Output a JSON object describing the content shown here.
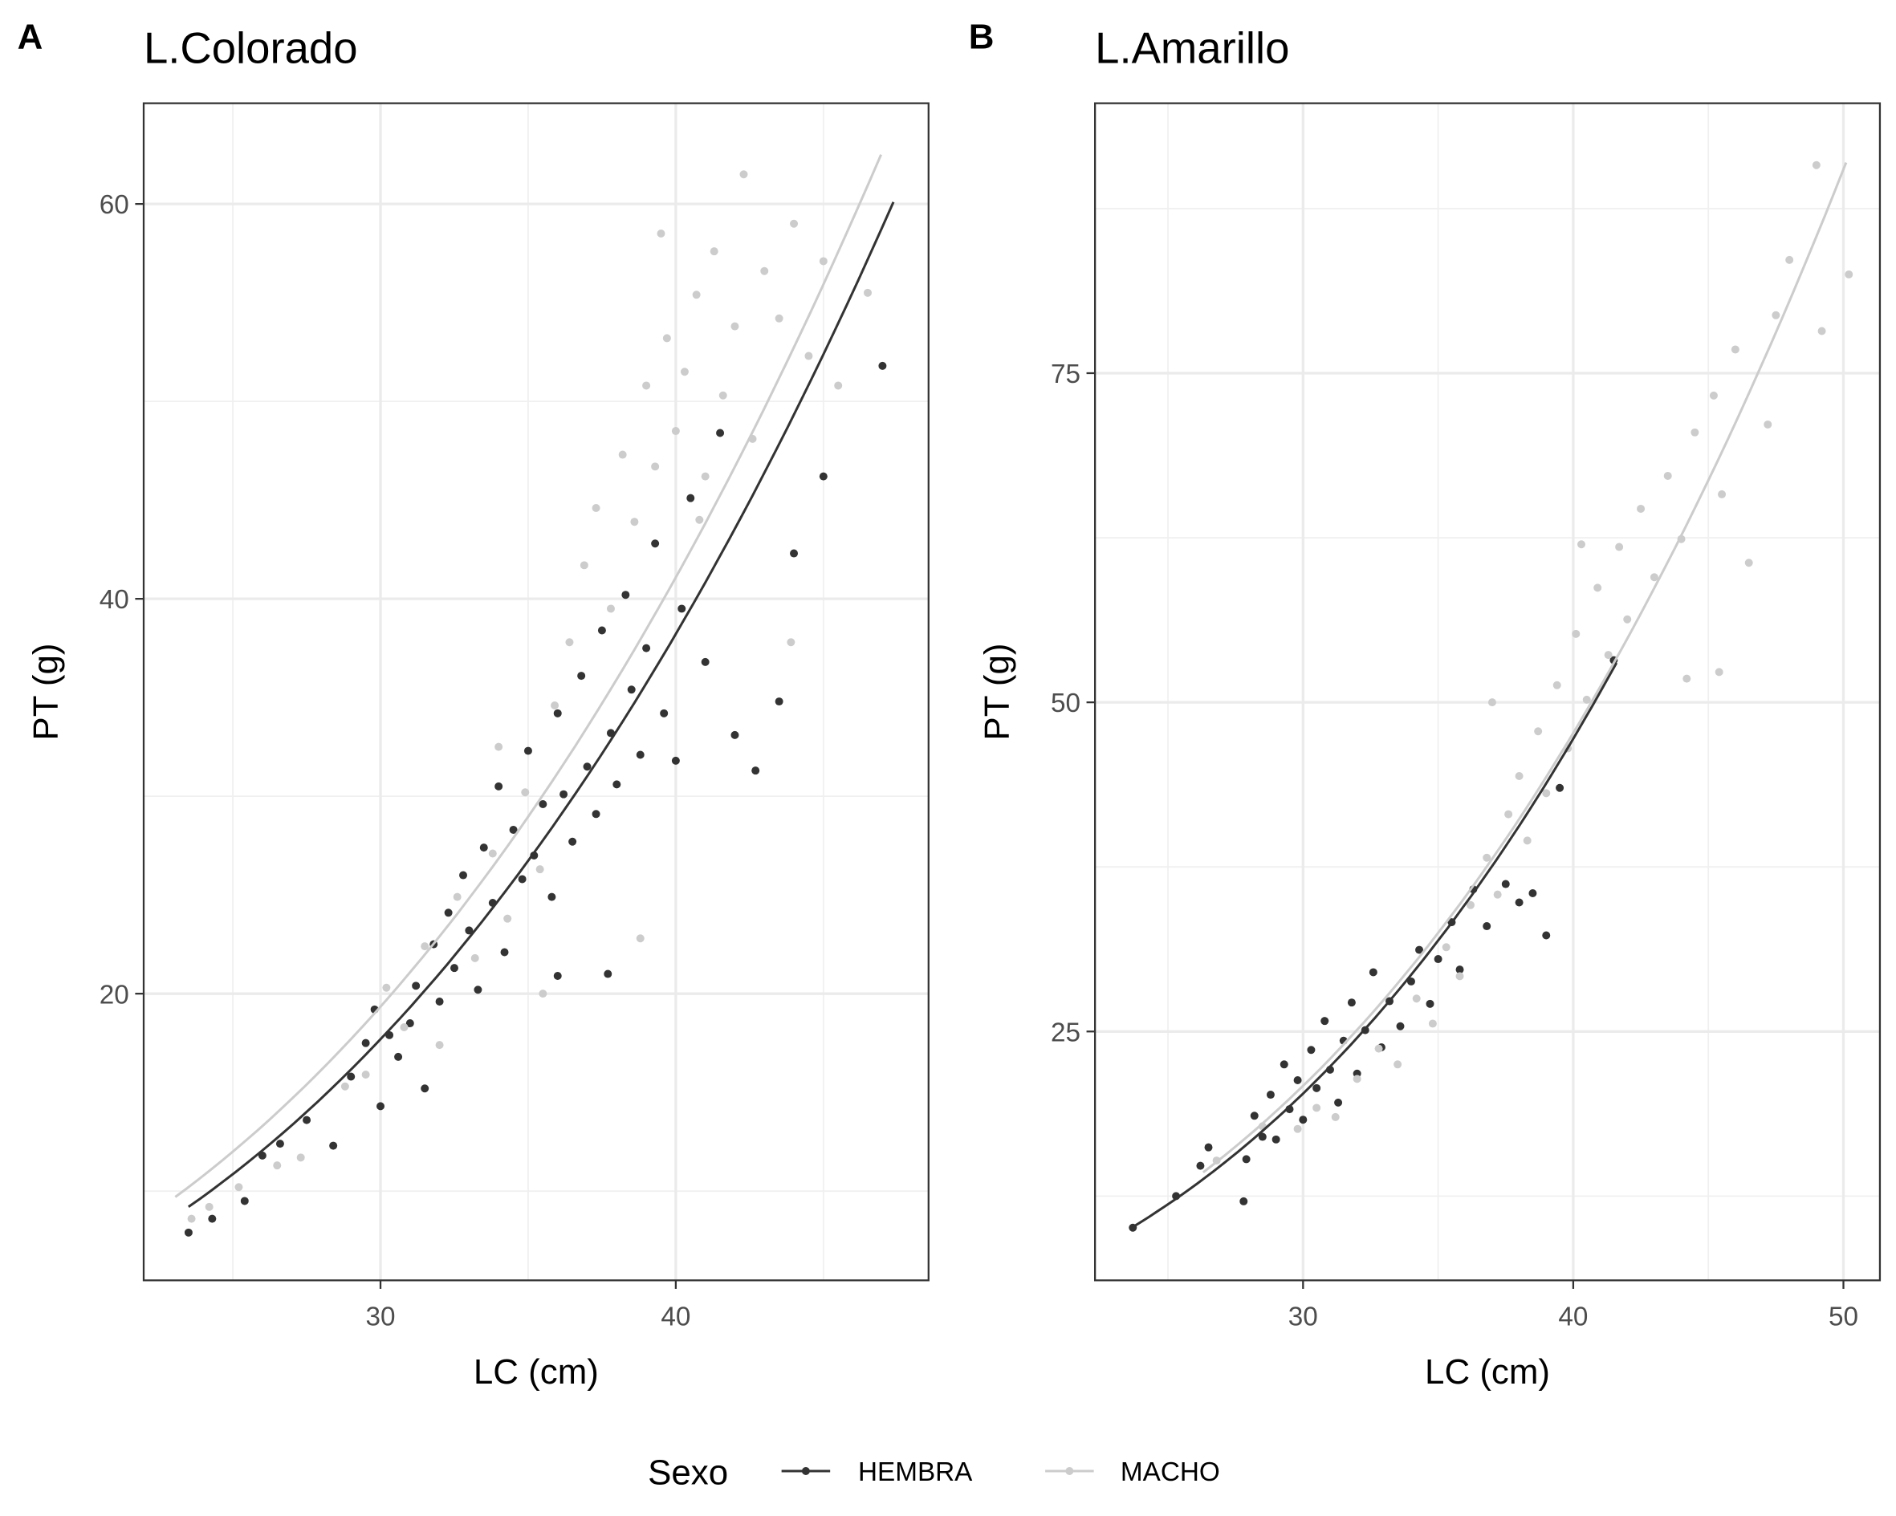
{
  "legend": {
    "title": "Sexo",
    "entries": [
      "HEMBRA",
      "MACHO"
    ]
  },
  "colors": {
    "HEMBRA": "#333333",
    "MACHO": "#cccccc"
  },
  "chart_data": [
    {
      "type": "scatter",
      "tag": "A",
      "title": "L.Colorado",
      "xlabel": "LC (cm)",
      "ylabel": "PT (g)",
      "xlim": [
        21.98,
        48.56
      ],
      "ylim": [
        5.48,
        65.1
      ],
      "xticks": [
        30,
        40
      ],
      "xticklabels": [
        "30",
        "40"
      ],
      "xminor": [
        25,
        35,
        45
      ],
      "yticks": [
        20,
        40,
        60
      ],
      "yticklabels": [
        "20",
        "40",
        "60"
      ],
      "yminor": [
        10,
        30,
        50
      ],
      "grid": true,
      "series": [
        {
          "name": "HEMBRA",
          "fit": {
            "x": [
              23.5,
              47.37
            ],
            "y": [
              9.2,
              60.1
            ]
          },
          "points": [
            [
              23.5,
              7.9
            ],
            [
              24.3,
              8.6
            ],
            [
              25.4,
              9.5
            ],
            [
              26,
              11.8
            ],
            [
              26.6,
              12.4
            ],
            [
              27.5,
              13.6
            ],
            [
              28.4,
              12.3
            ],
            [
              29,
              15.8
            ],
            [
              29.5,
              17.5
            ],
            [
              29.8,
              19.2
            ],
            [
              30,
              14.3
            ],
            [
              30.3,
              17.9
            ],
            [
              30.6,
              16.8
            ],
            [
              31,
              18.5
            ],
            [
              31.2,
              20.4
            ],
            [
              31.5,
              15.2
            ],
            [
              31.8,
              22.5
            ],
            [
              32,
              19.6
            ],
            [
              32.3,
              24.1
            ],
            [
              32.5,
              21.3
            ],
            [
              32.8,
              26
            ],
            [
              33,
              23.2
            ],
            [
              33.3,
              20.2
            ],
            [
              33.5,
              27.4
            ],
            [
              33.8,
              24.6
            ],
            [
              34,
              30.5
            ],
            [
              34.2,
              22.1
            ],
            [
              34.5,
              28.3
            ],
            [
              34.8,
              25.8
            ],
            [
              35,
              32.3
            ],
            [
              35.2,
              27
            ],
            [
              35.5,
              29.6
            ],
            [
              35.8,
              24.9
            ],
            [
              36,
              34.2
            ],
            [
              36.2,
              30.1
            ],
            [
              36.5,
              27.7
            ],
            [
              36.8,
              36.1
            ],
            [
              37,
              31.5
            ],
            [
              37.3,
              29.1
            ],
            [
              37.5,
              38.4
            ],
            [
              37.8,
              33.2
            ],
            [
              38,
              30.6
            ],
            [
              38.3,
              40.2
            ],
            [
              38.5,
              35.4
            ],
            [
              38.8,
              32.1
            ],
            [
              39,
              37.5
            ],
            [
              39.3,
              42.8
            ],
            [
              39.6,
              34.2
            ],
            [
              40,
              31.8
            ],
            [
              40.2,
              39.5
            ],
            [
              40.5,
              45.1
            ],
            [
              41,
              36.8
            ],
            [
              41.5,
              48.4
            ],
            [
              42,
              33.1
            ],
            [
              42.7,
              31.3
            ],
            [
              43.5,
              34.8
            ],
            [
              44,
              42.3
            ],
            [
              45,
              46.2
            ],
            [
              47,
              51.8
            ],
            [
              37.7,
              21
            ],
            [
              36,
              20.9
            ]
          ]
        },
        {
          "name": "MACHO",
          "fit": {
            "x": [
              23.05,
              46.95
            ],
            "y": [
              9.7,
              62.5
            ]
          },
          "points": [
            [
              23.6,
              8.6
            ],
            [
              24.2,
              9.2
            ],
            [
              25.2,
              10.2
            ],
            [
              26.5,
              11.3
            ],
            [
              27.3,
              11.7
            ],
            [
              28.8,
              15.3
            ],
            [
              29.5,
              15.9
            ],
            [
              30.2,
              20.3
            ],
            [
              30.8,
              18.3
            ],
            [
              31.5,
              22.4
            ],
            [
              32,
              17.4
            ],
            [
              32.6,
              24.9
            ],
            [
              33.2,
              21.8
            ],
            [
              33.8,
              27.1
            ],
            [
              34.3,
              23.8
            ],
            [
              34.9,
              30.2
            ],
            [
              35.4,
              26.3
            ],
            [
              35.9,
              34.6
            ],
            [
              36.4,
              37.8
            ],
            [
              36.9,
              41.7
            ],
            [
              37.3,
              44.6
            ],
            [
              37.8,
              39.5
            ],
            [
              38.2,
              47.3
            ],
            [
              38.6,
              43.9
            ],
            [
              39,
              50.8
            ],
            [
              39.3,
              46.7
            ],
            [
              39.7,
              53.2
            ],
            [
              40,
              48.5
            ],
            [
              40.3,
              51.5
            ],
            [
              40.7,
              55.4
            ],
            [
              41,
              46.2
            ],
            [
              41.3,
              57.6
            ],
            [
              41.6,
              50.3
            ],
            [
              42,
              53.8
            ],
            [
              42.3,
              61.5
            ],
            [
              42.6,
              48.1
            ],
            [
              43,
              56.6
            ],
            [
              43.5,
              54.2
            ],
            [
              44,
              59
            ],
            [
              44.5,
              52.3
            ],
            [
              45,
              57.1
            ],
            [
              45.5,
              50.8
            ],
            [
              46.5,
              55.5
            ],
            [
              43.9,
              37.8
            ],
            [
              35.5,
              20
            ],
            [
              38.8,
              22.8
            ],
            [
              34,
              32.5
            ],
            [
              39.5,
              58.5
            ],
            [
              40.8,
              44
            ]
          ]
        }
      ]
    },
    {
      "type": "scatter",
      "tag": "B",
      "title": "L.Amarillo",
      "xlabel": "LC (cm)",
      "ylabel": "PT (g)",
      "xlim": [
        22.3,
        51.35
      ],
      "ylim": [
        6.1,
        95.5
      ],
      "xticks": [
        30,
        40,
        50
      ],
      "xticklabels": [
        "30",
        "40",
        "50"
      ],
      "xminor": [
        25,
        35,
        45
      ],
      "yticks": [
        25,
        50,
        75
      ],
      "yticklabels": [
        "25",
        "50",
        "75"
      ],
      "yminor": [
        12.5,
        37.5,
        62.5,
        87.5
      ],
      "grid": true,
      "series": [
        {
          "name": "HEMBRA",
          "fit": {
            "x": [
              23.7,
              41.6
            ],
            "y": [
              10.15,
              53.0
            ]
          },
          "points": [
            [
              23.7,
              10.1
            ],
            [
              25.3,
              12.5
            ],
            [
              26.2,
              14.8
            ],
            [
              26.5,
              16.2
            ],
            [
              27.8,
              12.1
            ],
            [
              27.9,
              15.3
            ],
            [
              28.2,
              18.6
            ],
            [
              28.5,
              17
            ],
            [
              28.8,
              20.2
            ],
            [
              29,
              16.8
            ],
            [
              29.3,
              22.5
            ],
            [
              29.5,
              19.1
            ],
            [
              29.8,
              21.3
            ],
            [
              30,
              18.3
            ],
            [
              30.3,
              23.6
            ],
            [
              30.5,
              20.7
            ],
            [
              30.8,
              25.8
            ],
            [
              31,
              22.1
            ],
            [
              31.3,
              19.6
            ],
            [
              31.5,
              24.3
            ],
            [
              31.8,
              27.2
            ],
            [
              32,
              21.8
            ],
            [
              32.3,
              25.1
            ],
            [
              32.6,
              29.5
            ],
            [
              32.9,
              23.8
            ],
            [
              33.2,
              27.3
            ],
            [
              33.6,
              25.4
            ],
            [
              34,
              28.8
            ],
            [
              34.3,
              31.2
            ],
            [
              34.7,
              27.1
            ],
            [
              35,
              30.5
            ],
            [
              35.5,
              33.3
            ],
            [
              35.8,
              29.7
            ],
            [
              36.3,
              35.8
            ],
            [
              36.8,
              33
            ],
            [
              37.5,
              36.2
            ],
            [
              38,
              34.8
            ],
            [
              38.5,
              35.5
            ],
            [
              39,
              32.3
            ],
            [
              39.5,
              43.5
            ],
            [
              41.5,
              53.2
            ]
          ]
        },
        {
          "name": "MACHO",
          "fit": {
            "x": [
              26.3,
              50.1
            ],
            "y": [
              14.3,
              91.0
            ]
          },
          "points": [
            [
              26.8,
              15.2
            ],
            [
              28.5,
              17.8
            ],
            [
              29.8,
              17.6
            ],
            [
              30.5,
              19.2
            ],
            [
              31.2,
              18.5
            ],
            [
              32,
              21.4
            ],
            [
              32.8,
              23.7
            ],
            [
              33.5,
              22.5
            ],
            [
              34.2,
              27.5
            ],
            [
              34.8,
              25.6
            ],
            [
              35.3,
              31.4
            ],
            [
              35.8,
              29.2
            ],
            [
              36.2,
              34.6
            ],
            [
              36.8,
              38.2
            ],
            [
              37.2,
              35.4
            ],
            [
              37.6,
              41.5
            ],
            [
              38,
              44.4
            ],
            [
              38.3,
              39.5
            ],
            [
              38.7,
              47.8
            ],
            [
              39,
              43.1
            ],
            [
              39.4,
              51.3
            ],
            [
              39.8,
              46.5
            ],
            [
              40.1,
              55.2
            ],
            [
              40.5,
              50.2
            ],
            [
              40.9,
              58.7
            ],
            [
              41.3,
              53.6
            ],
            [
              41.7,
              61.8
            ],
            [
              42,
              56.3
            ],
            [
              42.5,
              64.7
            ],
            [
              43,
              59.5
            ],
            [
              43.5,
              67.2
            ],
            [
              44,
              62.4
            ],
            [
              44.5,
              70.5
            ],
            [
              44.2,
              51.8
            ],
            [
              45.2,
              73.3
            ],
            [
              45.5,
              65.8
            ],
            [
              46,
              76.8
            ],
            [
              46.5,
              60.6
            ],
            [
              47.2,
              71.1
            ],
            [
              47.5,
              79.4
            ],
            [
              48,
              83.6
            ],
            [
              49,
              90.8
            ],
            [
              49.2,
              78.2
            ],
            [
              50.2,
              82.5
            ],
            [
              37,
              50
            ],
            [
              40.3,
              62
            ],
            [
              45.4,
              52.3
            ]
          ]
        }
      ]
    }
  ]
}
